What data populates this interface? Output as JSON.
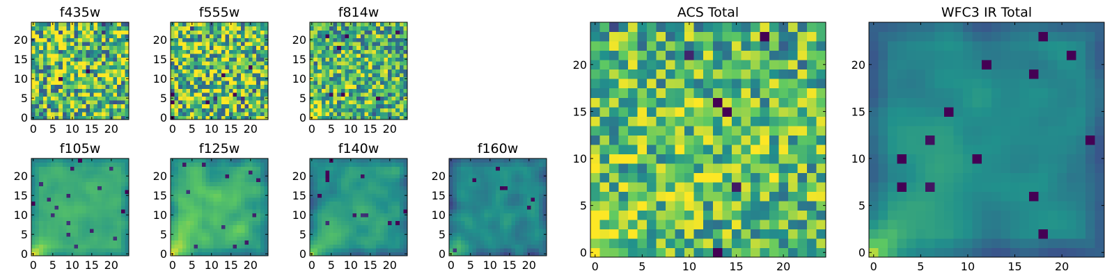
{
  "figure": {
    "colormap": "viridis",
    "colors": {
      "cmap_stops": [
        "#440154",
        "#3b528b",
        "#21918c",
        "#5ec962",
        "#fde725"
      ],
      "axis": "#000000",
      "background": "#ffffff"
    }
  },
  "chart_data": [
    {
      "type": "heatmap",
      "title": "f435w",
      "grid_size": 25,
      "xticks": [
        "0",
        "5",
        "10",
        "15",
        "20"
      ],
      "yticks": [
        "0",
        "5",
        "10",
        "15",
        "20"
      ],
      "xlim": [
        -0.5,
        24.5
      ],
      "ylim": [
        -0.5,
        24.5
      ],
      "pattern": "noisy",
      "mean_level": 0.68,
      "noise_amplitude": 0.55,
      "seed": 11
    },
    {
      "type": "heatmap",
      "title": "f555w",
      "grid_size": 25,
      "xticks": [
        "0",
        "5",
        "10",
        "15",
        "20"
      ],
      "yticks": [
        "0",
        "5",
        "10",
        "15",
        "20"
      ],
      "xlim": [
        -0.5,
        24.5
      ],
      "ylim": [
        -0.5,
        24.5
      ],
      "pattern": "noisy",
      "mean_level": 0.7,
      "noise_amplitude": 0.55,
      "seed": 23
    },
    {
      "type": "heatmap",
      "title": "f814w",
      "grid_size": 25,
      "xticks": [
        "0",
        "5",
        "10",
        "15",
        "20"
      ],
      "yticks": [
        "0",
        "5",
        "10",
        "15",
        "20"
      ],
      "xlim": [
        -0.5,
        24.5
      ],
      "ylim": [
        -0.5,
        24.5
      ],
      "pattern": "noisy-corner",
      "mean_level": 0.62,
      "noise_amplitude": 0.45,
      "seed": 37
    },
    {
      "type": "heatmap",
      "title": "f105w",
      "grid_size": 25,
      "xticks": [
        "0",
        "5",
        "10",
        "15",
        "20"
      ],
      "yticks": [
        "0",
        "5",
        "10",
        "15",
        "20"
      ],
      "xlim": [
        -0.5,
        24.5
      ],
      "ylim": [
        -0.5,
        24.5
      ],
      "pattern": "smooth-corner",
      "mean_level": 0.6,
      "noise_amplitude": 0.22,
      "seed": 41
    },
    {
      "type": "heatmap",
      "title": "f125w",
      "grid_size": 25,
      "xticks": [
        "0",
        "5",
        "10",
        "15",
        "20"
      ],
      "yticks": [
        "0",
        "5",
        "10",
        "15",
        "20"
      ],
      "xlim": [
        -0.5,
        24.5
      ],
      "ylim": [
        -0.5,
        24.5
      ],
      "pattern": "smooth-corner",
      "mean_level": 0.62,
      "noise_amplitude": 0.3,
      "seed": 53
    },
    {
      "type": "heatmap",
      "title": "f140w",
      "grid_size": 25,
      "xticks": [
        "0",
        "5",
        "10",
        "15",
        "20"
      ],
      "yticks": [
        "0",
        "5",
        "10",
        "15",
        "20"
      ],
      "xlim": [
        -0.5,
        24.5
      ],
      "ylim": [
        -0.5,
        24.5
      ],
      "pattern": "smooth-corner",
      "mean_level": 0.52,
      "noise_amplitude": 0.28,
      "seed": 67
    },
    {
      "type": "heatmap",
      "title": "f160w",
      "grid_size": 25,
      "xticks": [
        "0",
        "5",
        "10",
        "15",
        "20"
      ],
      "yticks": [
        "0",
        "5",
        "10",
        "15",
        "20"
      ],
      "xlim": [
        -0.5,
        24.5
      ],
      "ylim": [
        -0.5,
        24.5
      ],
      "pattern": "smooth-corner",
      "mean_level": 0.45,
      "noise_amplitude": 0.3,
      "seed": 79
    },
    {
      "type": "heatmap",
      "title": "ACS Total",
      "grid_size": 25,
      "xticks": [
        "0",
        "5",
        "10",
        "15",
        "20"
      ],
      "yticks": [
        "0",
        "5",
        "10",
        "15",
        "20"
      ],
      "xlim": [
        -0.5,
        24.5
      ],
      "ylim": [
        -0.5,
        24.5
      ],
      "pattern": "noisy-corner",
      "mean_level": 0.66,
      "noise_amplitude": 0.4,
      "seed": 97
    },
    {
      "type": "heatmap",
      "title": "WFC3 IR Total",
      "grid_size": 25,
      "xticks": [
        "0",
        "5",
        "10",
        "15",
        "20"
      ],
      "yticks": [
        "0",
        "5",
        "10",
        "15",
        "20"
      ],
      "xlim": [
        -0.5,
        24.5
      ],
      "ylim": [
        -0.5,
        24.5
      ],
      "pattern": "smooth-corner",
      "mean_level": 0.45,
      "noise_amplitude": 0.2,
      "seed": 101
    }
  ]
}
